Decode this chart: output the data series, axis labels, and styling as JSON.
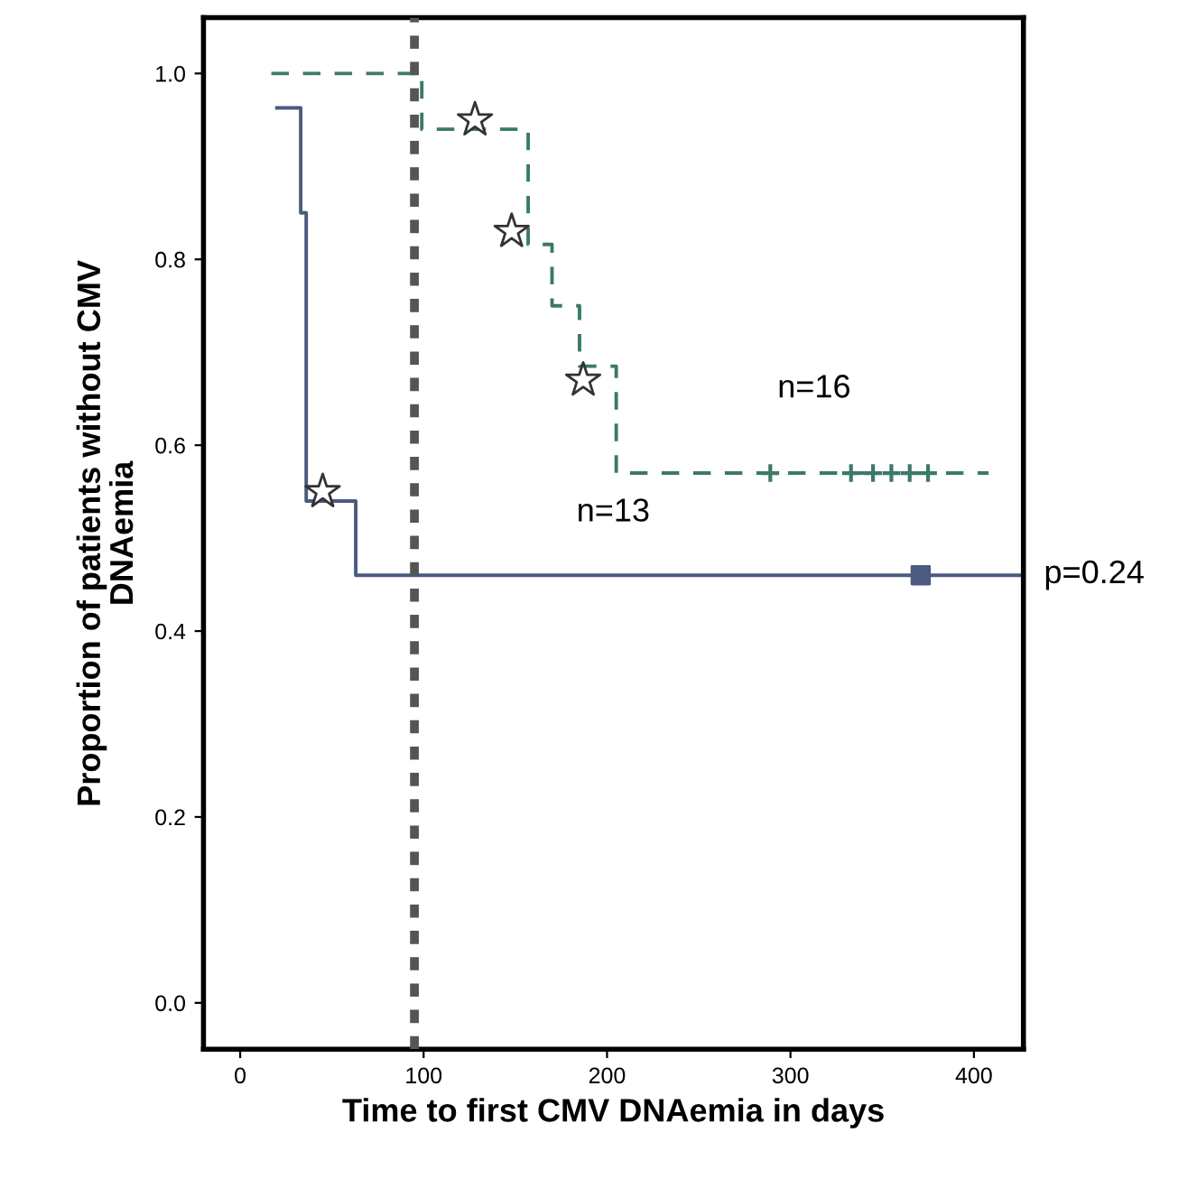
{
  "chart_data": {
    "type": "step",
    "xlabel": "Time to first CMV DNAemia in days",
    "ylabel": "Proportion of patients without CMV\nDNAemia",
    "xlim": [
      -20,
      427
    ],
    "ylim": [
      -0.05,
      1.06
    ],
    "xticks": [
      0,
      100,
      200,
      300,
      400
    ],
    "yticks": [
      {
        "value": 0,
        "label": "0.0"
      },
      0.2,
      0.4,
      0.6,
      0.8,
      {
        "value": 1,
        "label": "1.0"
      }
    ],
    "grid": false,
    "series": [
      {
        "color": "#4a5a80",
        "line_style": "solid",
        "x": [
          20,
          33,
          36,
          63,
          425
        ],
        "values": [
          0.963,
          0.85,
          0.54,
          0.46,
          0.46
        ]
      },
      {
        "color": "#3a7a6a",
        "line_style": "dashed",
        "x": [
          17,
          99,
          157,
          170,
          185,
          205,
          408
        ],
        "values": [
          1.0,
          0.94,
          0.816,
          0.75,
          0.685,
          0.57,
          0.57
        ]
      },
      {
        "type": "scatter",
        "color": "#4a5a80",
        "marker": "square",
        "x": [
          371
        ],
        "values": [
          0.46
        ]
      },
      {
        "type": "scatter",
        "color": "#3a7a6a",
        "marker": "cross",
        "x": [
          289,
          333,
          345,
          355,
          365,
          375
        ],
        "values": [
          0.57,
          0.57,
          0.57,
          0.57,
          0.57,
          0.57
        ]
      },
      {
        "type": "scatter",
        "color": "#333333",
        "marker": "star",
        "x": [
          45,
          128,
          148,
          187
        ],
        "values": [
          0.55,
          0.95,
          0.83,
          0.67
        ]
      }
    ],
    "ref_lines": [
      {
        "axis": "x",
        "value": 95,
        "color": "#555555",
        "line_style": "dotted"
      }
    ],
    "annotations": [
      "n=16",
      "n=13",
      "p=0.24"
    ]
  }
}
